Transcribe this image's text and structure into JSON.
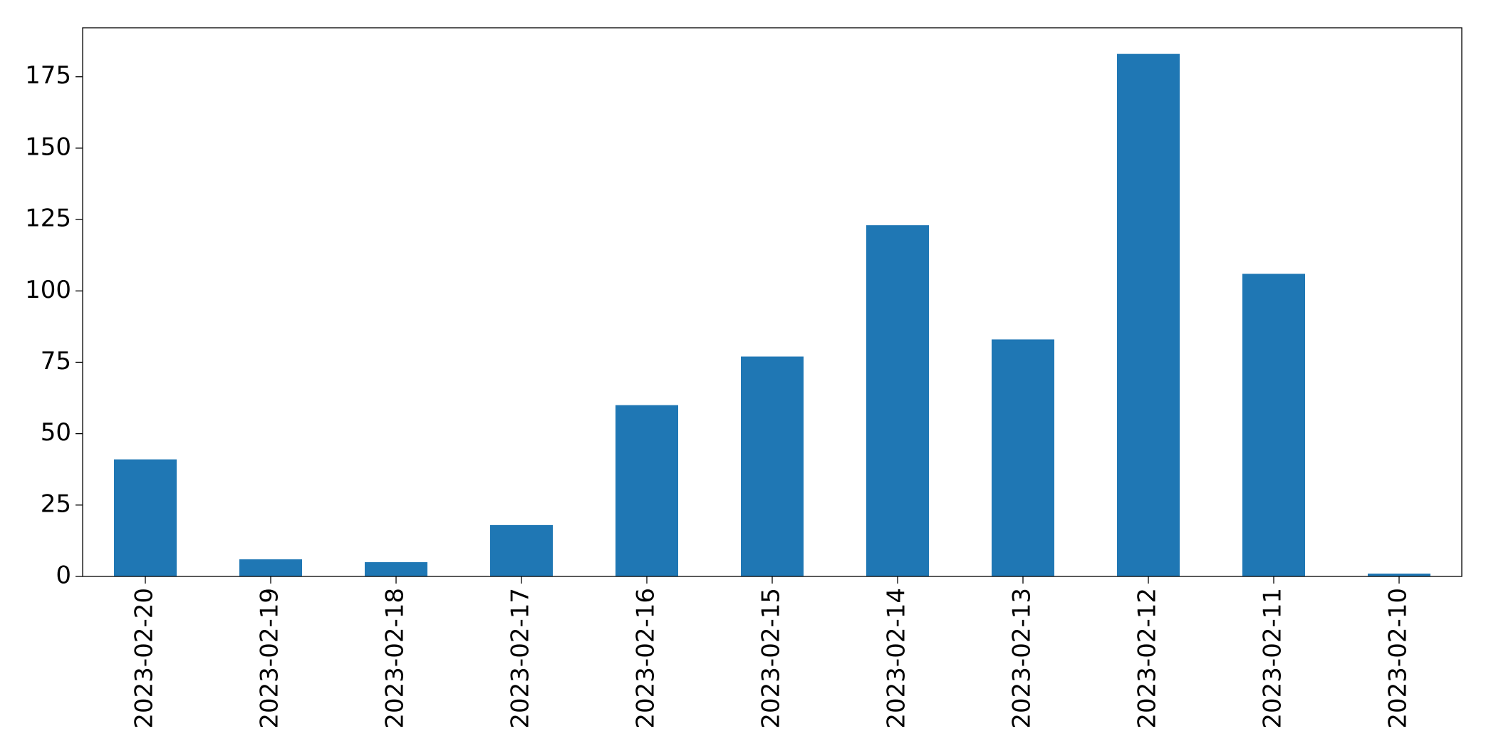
{
  "chart_data": {
    "type": "bar",
    "categories": [
      "2023-02-20",
      "2023-02-19",
      "2023-02-18",
      "2023-02-17",
      "2023-02-16",
      "2023-02-15",
      "2023-02-14",
      "2023-02-13",
      "2023-02-12",
      "2023-02-11",
      "2023-02-10"
    ],
    "values": [
      41,
      6,
      5,
      18,
      60,
      77,
      123,
      83,
      183,
      106,
      1
    ],
    "color": "#1f77b4",
    "ylim": [
      0,
      192.15
    ],
    "yticks": [
      0,
      25,
      50,
      75,
      100,
      125,
      150,
      175
    ],
    "grid": false
  }
}
